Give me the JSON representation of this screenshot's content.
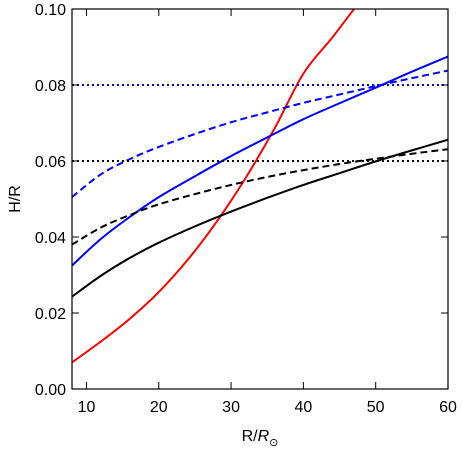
{
  "chart_data": {
    "type": "line",
    "title": "",
    "xlabel": {
      "main": "R/",
      "italic": "R",
      "sub": "⊙"
    },
    "ylabel": "H/R",
    "xlim": [
      8,
      60
    ],
    "ylim": [
      0.0,
      0.1
    ],
    "x_ticks": [
      10,
      20,
      30,
      40,
      50,
      60
    ],
    "y_ticks": [
      0.0,
      0.02,
      0.04,
      0.06,
      0.08,
      0.1
    ],
    "x_tick_labels": [
      "10",
      "20",
      "30",
      "40",
      "50",
      "60"
    ],
    "y_tick_labels": [
      "0.00",
      "0.02",
      "0.04",
      "0.06",
      "0.08",
      "0.10"
    ],
    "grid": false,
    "legend": "none",
    "series": [
      {
        "color": "#ff0000",
        "style": "solid",
        "x": [
          8,
          12,
          16,
          20,
          24,
          28,
          32,
          36,
          40,
          44,
          47
        ],
        "y": [
          0.007,
          0.0125,
          0.0185,
          0.0255,
          0.034,
          0.044,
          0.0555,
          0.0685,
          0.083,
          0.0925,
          0.1
        ]
      },
      {
        "color": "#0000ff",
        "style": "solid",
        "x": [
          8,
          12,
          16,
          20,
          25,
          30,
          35,
          40,
          45,
          50,
          55,
          60
        ],
        "y": [
          0.0325,
          0.0395,
          0.0453,
          0.0505,
          0.056,
          0.0613,
          0.0662,
          0.071,
          0.0752,
          0.0793,
          0.0835,
          0.0875
        ]
      },
      {
        "color": "#0000ff",
        "style": "dashed",
        "x": [
          8,
          12,
          16,
          20,
          25,
          30,
          35,
          40,
          45,
          50,
          55,
          60
        ],
        "y": [
          0.0505,
          0.0565,
          0.0605,
          0.0637,
          0.0671,
          0.0702,
          0.0728,
          0.0753,
          0.0775,
          0.0797,
          0.0818,
          0.0838
        ]
      },
      {
        "color": "#0000ff",
        "style": "dotted",
        "x": [
          8,
          60
        ],
        "y": [
          0.08,
          0.08
        ]
      },
      {
        "color": "#000000",
        "style": "solid",
        "x": [
          8,
          12,
          16,
          20,
          25,
          30,
          35,
          40,
          45,
          50,
          55,
          60
        ],
        "y": [
          0.0243,
          0.0298,
          0.0345,
          0.0385,
          0.0428,
          0.0467,
          0.0503,
          0.0537,
          0.0568,
          0.0599,
          0.0628,
          0.0656
        ]
      },
      {
        "color": "#000000",
        "style": "dashed",
        "x": [
          8,
          12,
          16,
          20,
          25,
          30,
          35,
          40,
          45,
          50,
          55,
          60
        ],
        "y": [
          0.038,
          0.0425,
          0.0458,
          0.0486,
          0.0513,
          0.0537,
          0.0558,
          0.0576,
          0.0592,
          0.0606,
          0.0619,
          0.0631
        ]
      },
      {
        "color": "#000000",
        "style": "dotted",
        "x": [
          8,
          60
        ],
        "y": [
          0.06,
          0.06
        ]
      }
    ]
  }
}
